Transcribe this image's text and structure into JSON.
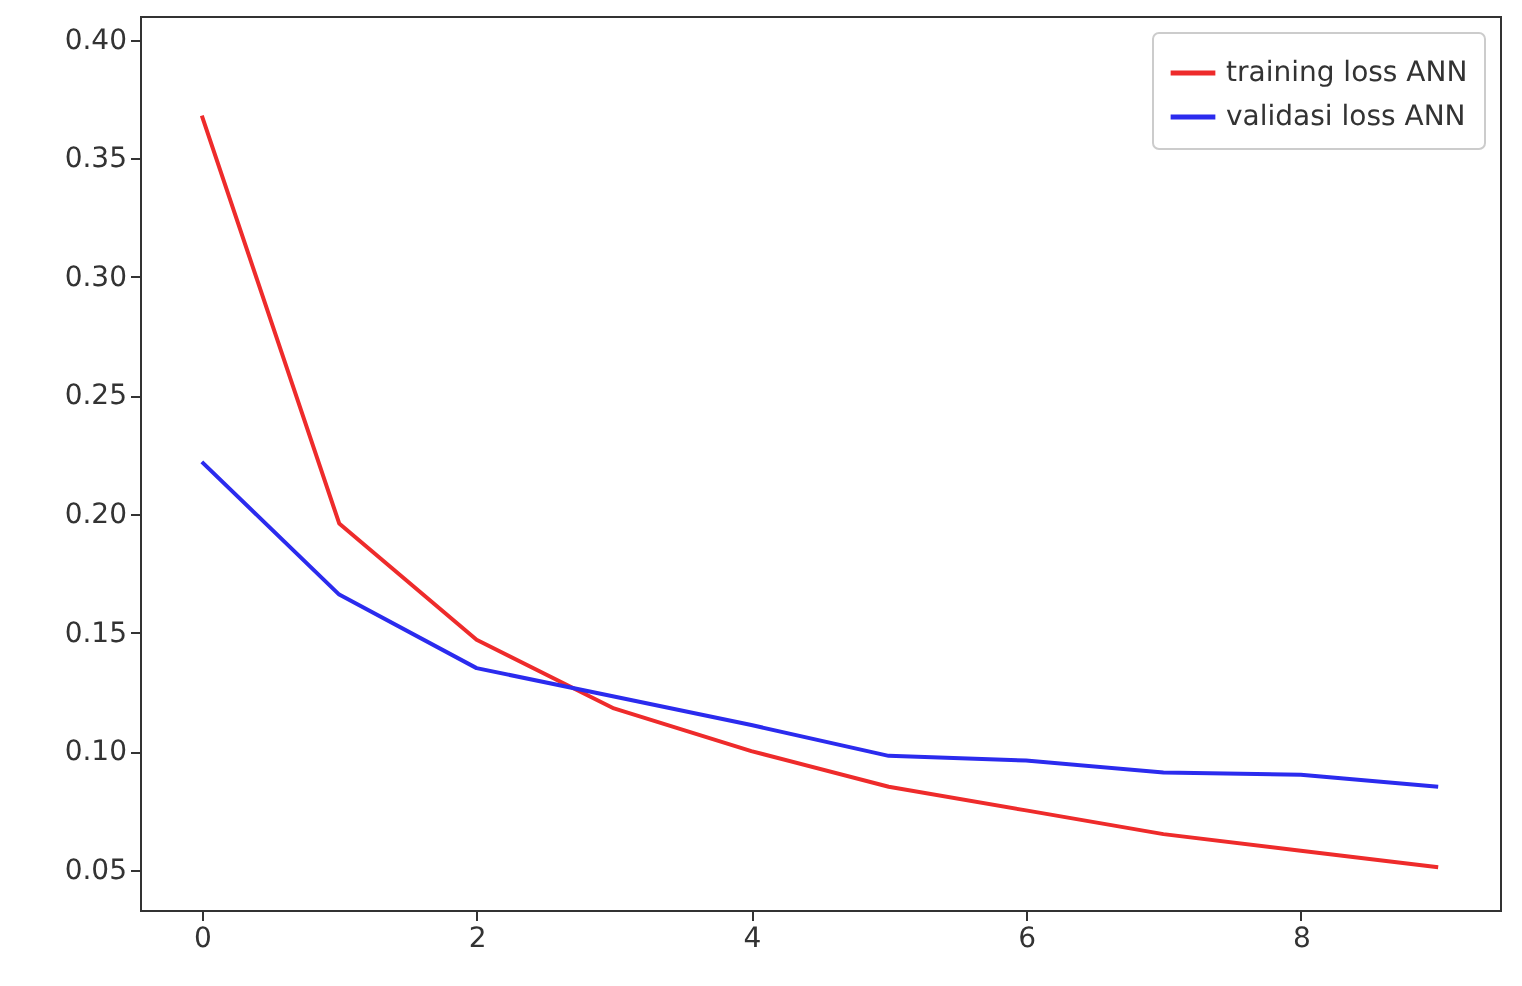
{
  "chart_data": {
    "type": "line",
    "x": [
      0,
      1,
      2,
      3,
      4,
      5,
      6,
      7,
      8,
      9
    ],
    "series": [
      {
        "name": "training loss ANN",
        "color": "#ee2b2b",
        "values": [
          0.368,
          0.196,
          0.147,
          0.118,
          0.1,
          0.085,
          0.075,
          0.065,
          0.058,
          0.051
        ]
      },
      {
        "name": "validasi loss ANN",
        "color": "#2b2bee",
        "values": [
          0.222,
          0.166,
          0.135,
          0.123,
          0.111,
          0.098,
          0.096,
          0.091,
          0.09,
          0.085
        ]
      }
    ],
    "xlim": [
      -0.45,
      9.45
    ],
    "xticks": [
      0,
      2,
      4,
      6,
      8
    ],
    "ylim": [
      0.033,
      0.41
    ],
    "yticks": [
      0.05,
      {
        "value": 0.1,
        "label": "0.10"
      },
      0.15,
      {
        "value": 0.2,
        "label": "0.20"
      },
      0.25,
      {
        "value": 0.3,
        "label": "0.30"
      },
      0.35,
      {
        "value": 0.4,
        "label": "0.40"
      }
    ],
    "grid": false,
    "legend": "top right"
  }
}
